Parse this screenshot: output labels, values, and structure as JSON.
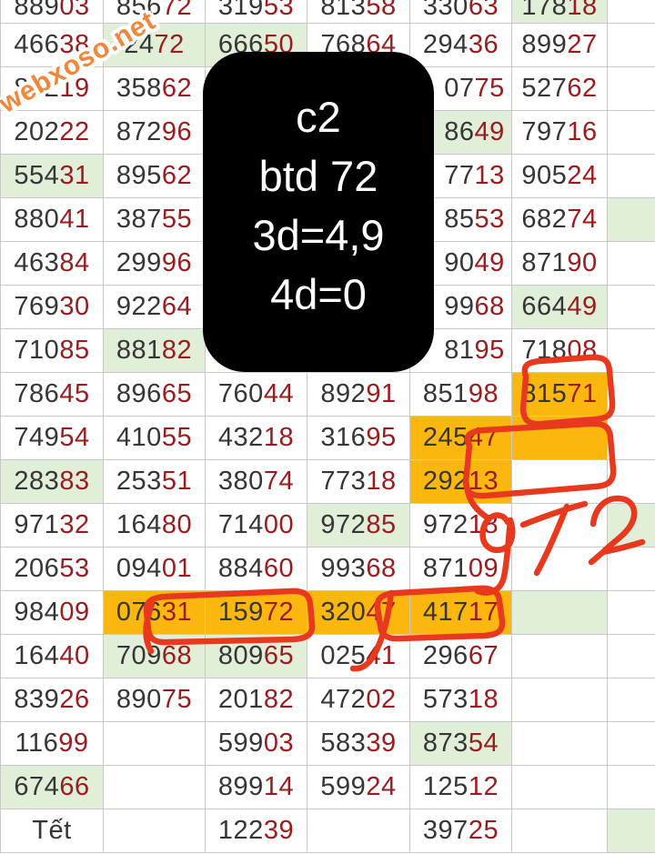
{
  "watermark": {
    "text": "webxoso.net"
  },
  "overlay_note": {
    "lines": [
      "c2",
      "btd 72",
      "3d=4,9",
      "4d=0"
    ]
  },
  "annotations": {
    "handwritten_text": "972",
    "circled": [
      "81571",
      "empty orange cell",
      "07631 + 15972",
      "32047 + 41717"
    ]
  },
  "colors": {
    "accent_orange": "#fcb70e",
    "highlight_green": "#e1eed8",
    "digit_dark": "#363636",
    "digit_red": "#9c1b1c",
    "annotation_red": "#e8391f",
    "watermark_orange": "#f2863a",
    "grid_line": "#c9c9c9"
  },
  "table": {
    "rows": [
      {
        "cells": [
          {
            "v": "88903"
          },
          {
            "v": "85672"
          },
          {
            "v": "31953"
          },
          {
            "v": "81358"
          },
          {
            "v": "33063"
          },
          {
            "v": "17818",
            "bg": "g"
          },
          {
            "v": ""
          }
        ]
      },
      {
        "cells": [
          {
            "v": "46638"
          },
          {
            "v": "2472",
            "bg": "g"
          },
          {
            "v": "66650",
            "bg": "g"
          },
          {
            "v": "76864"
          },
          {
            "v": "29436"
          },
          {
            "v": "89927"
          },
          {
            "v": ""
          }
        ]
      },
      {
        "cells": [
          {
            "v": "87219"
          },
          {
            "v": "35862"
          },
          {
            "v": ""
          },
          {
            "v": ""
          },
          {
            "v": "0775",
            "pad": true
          },
          {
            "v": "52762"
          },
          {
            "v": ""
          }
        ]
      },
      {
        "cells": [
          {
            "v": "20222"
          },
          {
            "v": "87296"
          },
          {
            "v": ""
          },
          {
            "v": ""
          },
          {
            "v": "8649",
            "bg": "g",
            "pad": true
          },
          {
            "v": "79716"
          },
          {
            "v": ""
          }
        ]
      },
      {
        "cells": [
          {
            "v": "55431",
            "bg": "g"
          },
          {
            "v": "89562"
          },
          {
            "v": ""
          },
          {
            "v": ""
          },
          {
            "v": "7713",
            "pad": true
          },
          {
            "v": "90524"
          },
          {
            "v": ""
          }
        ]
      },
      {
        "cells": [
          {
            "v": "88041"
          },
          {
            "v": "38755"
          },
          {
            "v": ""
          },
          {
            "v": ""
          },
          {
            "v": "8553",
            "pad": true
          },
          {
            "v": "68274"
          },
          {
            "v": "",
            "bg": "g"
          }
        ]
      },
      {
        "cells": [
          {
            "v": "46384"
          },
          {
            "v": "29996"
          },
          {
            "v": ""
          },
          {
            "v": ""
          },
          {
            "v": "9049",
            "pad": true
          },
          {
            "v": "87190"
          },
          {
            "v": ""
          }
        ]
      },
      {
        "cells": [
          {
            "v": "76930"
          },
          {
            "v": "92264"
          },
          {
            "v": ""
          },
          {
            "v": ""
          },
          {
            "v": "9968",
            "pad": true
          },
          {
            "v": "66449",
            "bg": "g"
          },
          {
            "v": ""
          }
        ]
      },
      {
        "cells": [
          {
            "v": "71085"
          },
          {
            "v": "88182",
            "bg": "g"
          },
          {
            "v": ""
          },
          {
            "v": ""
          },
          {
            "v": "8195",
            "pad": true
          },
          {
            "v": "71808"
          },
          {
            "v": ""
          }
        ]
      },
      {
        "cells": [
          {
            "v": "78645"
          },
          {
            "v": "89665"
          },
          {
            "v": "76044"
          },
          {
            "v": "89291"
          },
          {
            "v": "85198"
          },
          {
            "v": "81571",
            "bg": "o"
          },
          {
            "v": ""
          }
        ]
      },
      {
        "cells": [
          {
            "v": "74954"
          },
          {
            "v": "41055"
          },
          {
            "v": "43218"
          },
          {
            "v": "31695"
          },
          {
            "v": "24547",
            "bg": "o"
          },
          {
            "v": "",
            "bg": "o"
          },
          {
            "v": ""
          }
        ]
      },
      {
        "cells": [
          {
            "v": "28383",
            "bg": "g"
          },
          {
            "v": "25351"
          },
          {
            "v": "38074"
          },
          {
            "v": "77318"
          },
          {
            "v": "29213",
            "bg": "o"
          },
          {
            "v": ""
          },
          {
            "v": ""
          }
        ]
      },
      {
        "cells": [
          {
            "v": "97132"
          },
          {
            "v": "16480"
          },
          {
            "v": "71400"
          },
          {
            "v": "97285",
            "bg": "g"
          },
          {
            "v": "97218"
          },
          {
            "v": ""
          },
          {
            "v": "",
            "bg": "g"
          }
        ]
      },
      {
        "cells": [
          {
            "v": "20653"
          },
          {
            "v": "09401"
          },
          {
            "v": "88460"
          },
          {
            "v": "99368"
          },
          {
            "v": "87109"
          },
          {
            "v": ""
          },
          {
            "v": ""
          }
        ]
      },
      {
        "cells": [
          {
            "v": "98409"
          },
          {
            "v": "07631",
            "bg": "o"
          },
          {
            "v": "15972",
            "bg": "o"
          },
          {
            "v": "32047",
            "bg": "o"
          },
          {
            "v": "41717",
            "bg": "o"
          },
          {
            "v": "",
            "bg": "g"
          },
          {
            "v": ""
          }
        ]
      },
      {
        "cells": [
          {
            "v": "16440"
          },
          {
            "v": "70968",
            "bg": "g"
          },
          {
            "v": "80965",
            "bg": "g"
          },
          {
            "v": "02541"
          },
          {
            "v": "29667"
          },
          {
            "v": ""
          },
          {
            "v": ""
          }
        ]
      },
      {
        "cells": [
          {
            "v": "83926"
          },
          {
            "v": "89075"
          },
          {
            "v": "20182"
          },
          {
            "v": "47202"
          },
          {
            "v": "57318"
          },
          {
            "v": ""
          },
          {
            "v": ""
          }
        ]
      },
      {
        "cells": [
          {
            "v": "11699"
          },
          {
            "v": ""
          },
          {
            "v": "59903"
          },
          {
            "v": "58339"
          },
          {
            "v": "87354",
            "bg": "g"
          },
          {
            "v": ""
          },
          {
            "v": ""
          }
        ]
      },
      {
        "cells": [
          {
            "v": "67466",
            "bg": "g"
          },
          {
            "v": ""
          },
          {
            "v": "89914"
          },
          {
            "v": "59924"
          },
          {
            "v": "12512"
          },
          {
            "v": ""
          },
          {
            "v": ""
          }
        ]
      },
      {
        "cells": [
          {
            "v": "Tết"
          },
          {
            "v": ""
          },
          {
            "v": "12239"
          },
          {
            "v": ""
          },
          {
            "v": "39725"
          },
          {
            "v": ""
          },
          {
            "v": "",
            "bg": "g"
          }
        ]
      }
    ]
  }
}
